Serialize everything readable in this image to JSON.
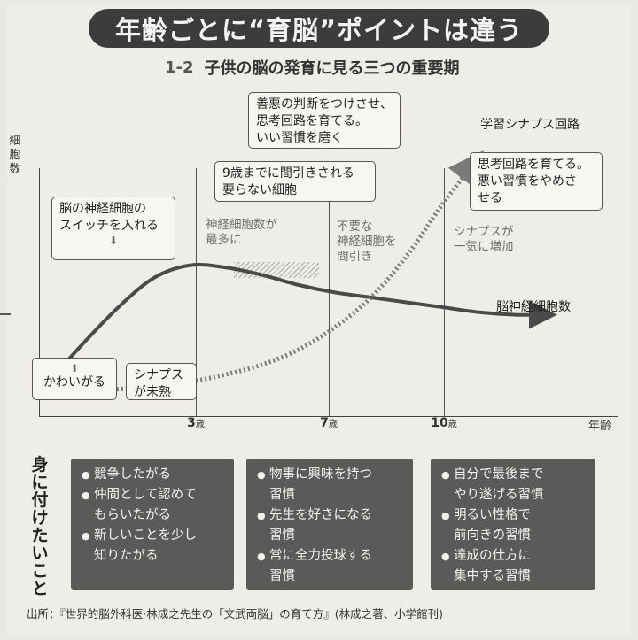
{
  "title": "年齢ごとに“育脳”ポイントは違う",
  "subtitle": {
    "figure_no": "1-2",
    "text": "子供の脳の発育に見る三つの重要期"
  },
  "chart_data": {
    "type": "line",
    "title": "子供の脳の発育に見る三つの重要期",
    "ylabel": "細胞数",
    "xlabel": "年齢",
    "x_ticks": [
      {
        "value": 3,
        "label": "3",
        "unit": "歳"
      },
      {
        "value": 7,
        "label": "7",
        "unit": "歳"
      },
      {
        "value": 10,
        "label": "10",
        "unit": "歳"
      }
    ],
    "xlim": [
      -1,
      15
    ],
    "ylim": [
      0,
      10
    ],
    "series": [
      {
        "name": "脳神経細胞数",
        "style": "solid",
        "x": [
          -1,
          0,
          1,
          2,
          3,
          4,
          5,
          6,
          7,
          8,
          9,
          10,
          11,
          12,
          13
        ],
        "y": [
          1.0,
          2.6,
          4.1,
          5.3,
          5.8,
          5.7,
          5.4,
          5.0,
          4.7,
          4.5,
          4.3,
          4.1,
          3.9,
          3.8,
          3.8
        ]
      },
      {
        "name": "学習シナプス回路",
        "style": "dotted",
        "x": [
          -1,
          0,
          1,
          2,
          3,
          4,
          5,
          6,
          7,
          8,
          9,
          10,
          11
        ],
        "y": [
          0.7,
          0.7,
          0.8,
          0.9,
          1.1,
          1.4,
          1.8,
          2.4,
          3.3,
          4.5,
          6.2,
          8.3,
          10.2
        ]
      }
    ]
  },
  "callouts": {
    "infancy_top": {
      "text1": "脳の神経細胞の",
      "text2": "スイッチを入れる",
      "arrow": "⬇"
    },
    "infancy_bottom": {
      "arrow": "⬆",
      "text": "かわいがる"
    },
    "synapse_immature": {
      "text1": "シナプス",
      "text2": "が未熟"
    },
    "age9": {
      "text1": "9歳までに間引きされる",
      "text2": "要らない細胞"
    },
    "age10": {
      "text1": "善悪の判断をつけさせ、",
      "text2": "思考回路を育てる。",
      "text3": "いい習慣を磨く"
    },
    "after10": {
      "text1": "思考回路を育てる。",
      "text2": "悪い習慣をやめさ",
      "text3": "せる"
    }
  },
  "annotations": {
    "peak": {
      "line1": "神経細胞数が",
      "line2": "最多に"
    },
    "prune": {
      "line1": "不要な",
      "line2": "神経細胞を",
      "line3": "間引き"
    },
    "surge": {
      "line1": "シナプスが",
      "line2": "一気に増加"
    }
  },
  "series_labels": {
    "neurons": "脳神経細胞数",
    "synapse": "学習シナプス回路"
  },
  "habits_label": "身に付けたいこと",
  "habit_panels": [
    {
      "items": [
        "競争したがる",
        "仲間として認めて",
        "もらいたがる",
        "新しいことを少し",
        "知りたがる"
      ]
    },
    {
      "items": [
        "物事に興味を持つ",
        "習慣",
        "先生を好きになる",
        "習慣",
        "常に全力投球する",
        "習慣"
      ]
    },
    {
      "items": [
        "自分で最後まで",
        "やり遂げる習慣",
        "明るい性格で",
        "前向きの習慣",
        "達成の仕方に",
        "集中する習慣"
      ]
    }
  ],
  "bullet": "●",
  "source": "出所：『世界的脳外科医·林成之先生の「文武両脳」の育て方』(林成之著、小学館刊)",
  "colors": {
    "panel": "#5a5a58",
    "banner": "#3c3c3c",
    "line": "#4a4a4a",
    "annot": "#6f6f6f"
  }
}
